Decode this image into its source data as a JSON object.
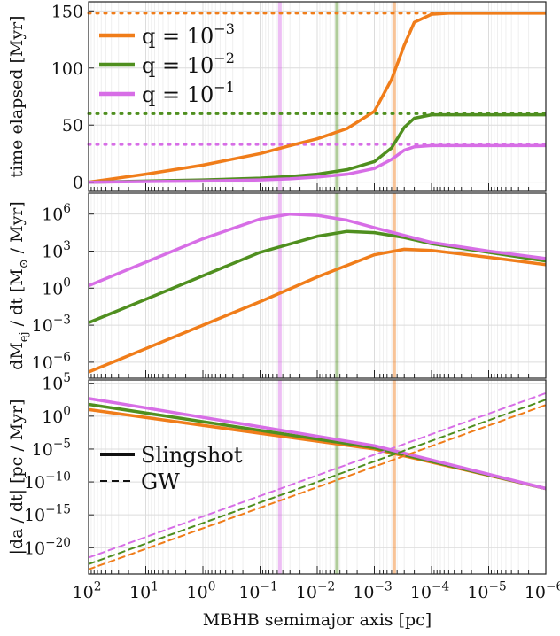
{
  "chart_data": {
    "type": "line",
    "xlabel": "MBHB semimajor axis [pc]",
    "x_scale": "log",
    "x_reversed": true,
    "xlim": [
      100,
      1e-06
    ],
    "x_tick_values": [
      100,
      10,
      1,
      0.1,
      0.01,
      0.001,
      0.0001,
      1e-05,
      1e-06
    ],
    "x_tick_labels": [
      {
        "base": "10",
        "exp": "2"
      },
      {
        "base": "10",
        "exp": "1"
      },
      {
        "base": "10",
        "exp": "0"
      },
      {
        "base": "10",
        "exp": "-1"
      },
      {
        "base": "10",
        "exp": "-2"
      },
      {
        "base": "10",
        "exp": "-3"
      },
      {
        "base": "10",
        "exp": "-4"
      },
      {
        "base": "10",
        "exp": "-5"
      },
      {
        "base": "10",
        "exp": "-6"
      }
    ],
    "colors": {
      "q1e-3": "#f07d1a",
      "q1e-2": "#4f8f1f",
      "q1e-1": "#d76ee6"
    },
    "vertical_lines": [
      {
        "series": "q1e-1",
        "x": 0.045
      },
      {
        "series": "q1e-2",
        "x": 0.0045
      },
      {
        "series": "q1e-3",
        "x": 0.00045
      }
    ],
    "panels": [
      {
        "id": "time",
        "ylabel": "time elapsed [Myr]",
        "y_scale": "linear",
        "ylim": [
          -8,
          158
        ],
        "y_ticks": [
          {
            "v": 0,
            "l": "0"
          },
          {
            "v": 50,
            "l": "50"
          },
          {
            "v": 100,
            "l": "100"
          },
          {
            "v": 150,
            "l": "150"
          }
        ],
        "legend": {
          "placement": "top-left",
          "entries": [
            {
              "series": "q1e-3",
              "text": "q = 10",
              "exp": "−3"
            },
            {
              "series": "q1e-2",
              "text": "q = 10",
              "exp": "−2"
            },
            {
              "series": "q1e-1",
              "text": "q = 10",
              "exp": "−1"
            }
          ]
        },
        "series": [
          {
            "key": "q1e-3",
            "style": "solid",
            "x": [
              100,
              10,
              1,
              0.1,
              0.03,
              0.01,
              0.003,
              0.001,
              0.0005,
              0.0003,
              0.0002,
              0.0001,
              5e-05,
              1e-05,
              1e-06
            ],
            "y": [
              0,
              7,
              15,
              25,
              32,
              38,
              47,
              62,
              90,
              120,
              140,
              147,
              148,
              148,
              148
            ]
          },
          {
            "key": "q1e-2",
            "style": "solid",
            "x": [
              100,
              10,
              1,
              0.1,
              0.03,
              0.01,
              0.003,
              0.001,
              0.0005,
              0.0003,
              0.0002,
              0.0001,
              1e-05,
              1e-06
            ],
            "y": [
              0,
              1,
              2,
              3.5,
              5,
              7,
              11,
              18,
              30,
              48,
              56,
              59,
              59,
              59
            ]
          },
          {
            "key": "q1e-1",
            "style": "solid",
            "x": [
              100,
              10,
              1,
              0.1,
              0.03,
              0.01,
              0.003,
              0.001,
              0.0005,
              0.0003,
              0.0002,
              0.0001,
              1e-05,
              1e-06
            ],
            "y": [
              0,
              0.5,
              1,
              2,
              3,
              4.5,
              7,
              12,
              20,
              28,
              31,
              32,
              32,
              32
            ]
          }
        ],
        "hlines": [
          {
            "series": "q1e-3",
            "y": 148
          },
          {
            "series": "q1e-2",
            "y": 60
          },
          {
            "series": "q1e-1",
            "y": 33
          }
        ]
      },
      {
        "id": "mdot",
        "ylabel": "dM_ej / dt [M_⊙ / Myr]",
        "y_scale": "log",
        "ylim_exp": [
          -7.3,
          7.7
        ],
        "y_ticks": [
          {
            "v": 6,
            "base": "10",
            "exp": "6"
          },
          {
            "v": 3,
            "base": "10",
            "exp": "3"
          },
          {
            "v": 0,
            "base": "10",
            "exp": "0"
          },
          {
            "v": -3,
            "base": "10",
            "exp": "-3"
          },
          {
            "v": -6,
            "base": "10",
            "exp": "-6"
          }
        ],
        "series": [
          {
            "key": "q1e-3",
            "style": "solid",
            "x": [
              100,
              10,
              1,
              0.1,
              0.01,
              0.001,
              0.0003,
              0.0001,
              1e-05,
              1e-06
            ],
            "y_exp": [
              -6.8,
              -4.9,
              -3.0,
              -1.1,
              0.9,
              2.7,
              3.15,
              3.05,
              2.5,
              1.9
            ]
          },
          {
            "key": "q1e-2",
            "style": "solid",
            "x": [
              100,
              10,
              1,
              0.1,
              0.01,
              0.003,
              0.001,
              0.0003,
              0.0001,
              1e-05,
              1e-06
            ],
            "y_exp": [
              -2.8,
              -0.9,
              1.0,
              2.9,
              4.2,
              4.6,
              4.5,
              4.1,
              3.6,
              2.9,
              2.2
            ]
          },
          {
            "key": "q1e-1",
            "style": "solid",
            "x": [
              100,
              10,
              1,
              0.1,
              0.03,
              0.01,
              0.003,
              0.001,
              0.0001,
              1e-05,
              1e-06
            ],
            "y_exp": [
              0.2,
              2.1,
              4.0,
              5.6,
              6.0,
              5.9,
              5.5,
              4.9,
              3.7,
              3.0,
              2.4
            ]
          }
        ]
      },
      {
        "id": "dadt",
        "ylabel": "|da / dt| [pc / Myr]",
        "y_scale": "log",
        "ylim_exp": [
          -24,
          5.5
        ],
        "y_ticks": [
          {
            "v": 5,
            "base": "10",
            "exp": "5"
          },
          {
            "v": 0,
            "base": "10",
            "exp": "0"
          },
          {
            "v": -5,
            "base": "10",
            "exp": "-5"
          },
          {
            "v": -10,
            "base": "10",
            "exp": "-10"
          },
          {
            "v": -15,
            "base": "10",
            "exp": "-15"
          },
          {
            "v": -20,
            "base": "10",
            "exp": "-20"
          }
        ],
        "legend": {
          "placement": "middle-left",
          "entries": [
            {
              "style": "solid",
              "text": "Slingshot"
            },
            {
              "style": "dashed",
              "text": "GW"
            }
          ]
        },
        "series": [
          {
            "key": "q1e-3",
            "style": "solid",
            "x": [
              100,
              0.001,
              1e-06
            ],
            "y_exp": [
              1.0,
              -5.0,
              -11.0
            ]
          },
          {
            "key": "q1e-2",
            "style": "solid",
            "x": [
              100,
              0.001,
              1e-06
            ],
            "y_exp": [
              1.8,
              -4.8,
              -11.0
            ]
          },
          {
            "key": "q1e-1",
            "style": "solid",
            "x": [
              100,
              0.001,
              1e-06
            ],
            "y_exp": [
              2.7,
              -4.5,
              -11.0
            ]
          },
          {
            "key": "q1e-3",
            "style": "dashed",
            "x": [
              100,
              1e-06
            ],
            "y_exp": [
              -23.3,
              1.7
            ]
          },
          {
            "key": "q1e-2",
            "style": "dashed",
            "x": [
              100,
              1e-06
            ],
            "y_exp": [
              -22.5,
              2.5
            ]
          },
          {
            "key": "q1e-1",
            "style": "dashed",
            "x": [
              100,
              1e-06
            ],
            "y_exp": [
              -21.5,
              3.5
            ]
          }
        ]
      }
    ]
  }
}
